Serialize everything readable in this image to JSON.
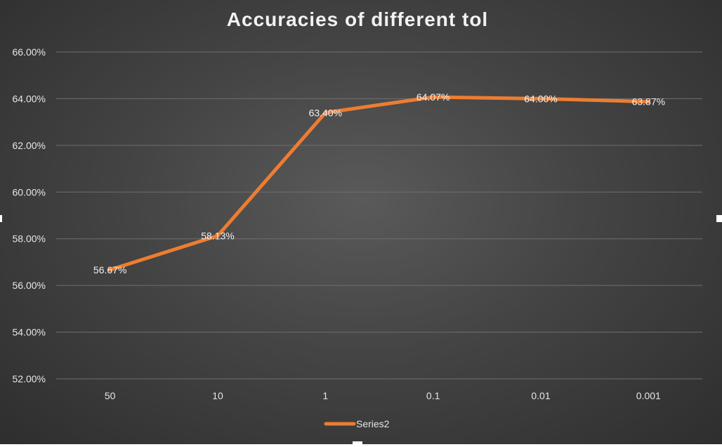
{
  "chart_data": {
    "type": "line",
    "title": "Accuracies of different tol",
    "categories": [
      "50",
      "10",
      "1",
      "0.1",
      "0.01",
      "0.001"
    ],
    "series": [
      {
        "name": "Series2",
        "values": [
          0.5667,
          0.5813,
          0.634,
          0.6407,
          0.64,
          0.6387
        ],
        "data_labels": [
          "56.67%",
          "58.13%",
          "63.40%",
          "64.07%",
          "64.00%",
          "63.87%"
        ],
        "color": "#ed7d31"
      }
    ],
    "ylim": [
      0.52,
      0.66
    ],
    "y_ticks": [
      "52.00%",
      "54.00%",
      "56.00%",
      "58.00%",
      "60.00%",
      "62.00%",
      "64.00%",
      "66.00%"
    ],
    "grid": true,
    "legend": "bottom",
    "xlabel": "",
    "ylabel": ""
  }
}
